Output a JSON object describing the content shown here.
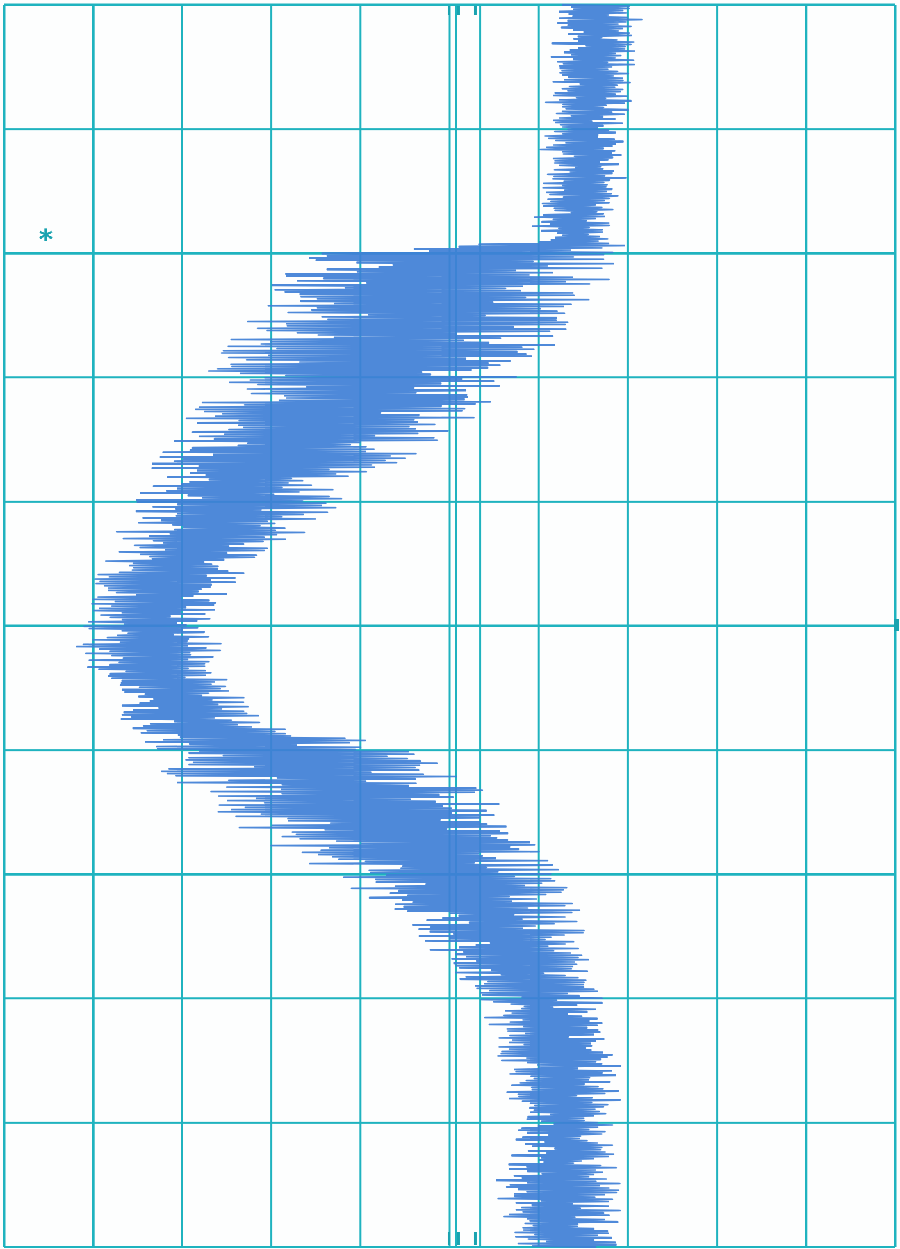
{
  "chart_data": {
    "type": "line",
    "title": "",
    "xlabel": "",
    "ylabel": "",
    "orientation": "vertical-trace",
    "grid": true,
    "grid_columns": 10,
    "grid_rows": 10,
    "xlim": [
      0,
      10
    ],
    "ylim": [
      0,
      10
    ],
    "colors": {
      "grid": "#1fb3bf",
      "trace": "#3f7fd6",
      "marks": "#1aa3b0",
      "paper": "#fdfefe"
    },
    "reference_columns": [
      5.07,
      5.34
    ],
    "annotation": "*",
    "series": [
      {
        "samples": 1100,
        "envelope_y": [
          0.0,
          0.5,
          1.0,
          1.5,
          1.9,
          1.98,
          2.0,
          2.3,
          2.6,
          3.0,
          3.4,
          3.8,
          4.2,
          4.6,
          5.0,
          5.4,
          5.8,
          6.0,
          6.4,
          6.8,
          7.2,
          7.6,
          8.0,
          8.6,
          9.2,
          9.5,
          10.0
        ],
        "envelope_center": [
          6.7,
          6.6,
          6.5,
          6.5,
          6.4,
          5.4,
          5.2,
          4.8,
          4.5,
          4.0,
          3.6,
          2.8,
          2.4,
          1.8,
          1.6,
          1.7,
          2.2,
          3.1,
          3.8,
          4.6,
          5.3,
          5.7,
          6.0,
          6.3,
          6.3,
          6.2,
          6.3
        ],
        "envelope_width": [
          0.9,
          0.9,
          0.9,
          0.9,
          0.9,
          3.4,
          3.6,
          3.9,
          3.8,
          3.5,
          3.1,
          2.6,
          2.1,
          1.6,
          1.5,
          1.5,
          1.7,
          3.2,
          3.4,
          3.0,
          2.4,
          1.8,
          1.4,
          1.2,
          1.2,
          1.4,
          1.2
        ]
      }
    ]
  }
}
